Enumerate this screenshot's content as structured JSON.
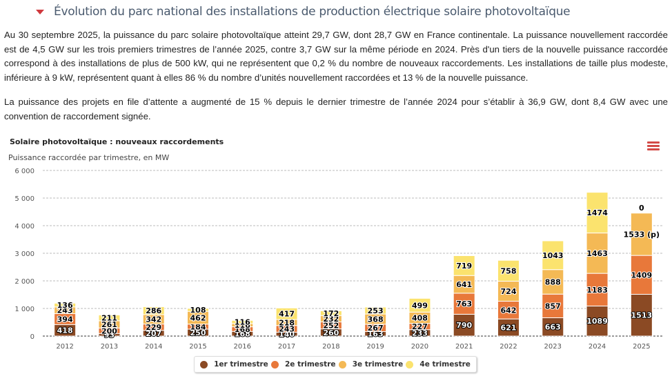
{
  "heading": {
    "title": "Évolution du parc national des installations de production électrique solaire photovoltaïque",
    "collapse_icon": "caret-down-icon"
  },
  "paragraphs": [
    "Au 30 septembre 2025, la puissance du parc solaire photovoltaïque atteint 29,7 GW, dont 28,7 GW en France continentale. La puissance nouvellement raccordée est de 4,5 GW sur les trois premiers trimestres de l’année 2025, contre 3,7 GW sur la même période en 2024. Près d'un tiers de la nouvelle puissance raccordée correspond à des installations de plus de 500 kW, qui ne représentent que 0,2 % du nombre de nouveaux raccordements. Les installations de taille plus modeste, inférieure à 9 kW, représentent quant à elles 86 % du nombre d’unités nouvellement raccordées et 13 % de la nouvelle puissance.",
    "La puissance des projets en file d’attente a augmenté de 15 % depuis le dernier trimestre de l’année 2024 pour s’établir à 36,9 GW, dont 8,4 GW avec une convention de raccordement signée."
  ],
  "chart_menu_icon": "hamburger-menu-icon",
  "chart_data": {
    "type": "bar",
    "stacked": true,
    "title": "Solaire photovoltaïque : nouveaux raccordements",
    "subtitle": "Puissance raccordée par trimestre, en MW",
    "xlabel": "",
    "ylabel": "",
    "ylim": [
      0,
      6000
    ],
    "yticks": [
      0,
      1000,
      2000,
      3000,
      4000,
      5000,
      6000
    ],
    "ytick_labels": [
      "0",
      "1 000",
      "2 000",
      "3 000",
      "4 000",
      "5 000",
      "6 000"
    ],
    "grid": true,
    "legend_position": "bottom-center",
    "categories": [
      "2012",
      "2013",
      "2014",
      "2015",
      "2016",
      "2017",
      "2018",
      "2019",
      "2020",
      "2021",
      "2022",
      "2023",
      "2024",
      "2025"
    ],
    "series": [
      {
        "name": "1er trimestre",
        "color": "#8b4a24",
        "values": [
          418,
          93,
          207,
          250,
          168,
          140,
          260,
          163,
          233,
          790,
          621,
          663,
          1089,
          1513
        ]
      },
      {
        "name": "2e trimestre",
        "color": "#e8783a",
        "values": [
          394,
          200,
          229,
          184,
          168,
          243,
          252,
          267,
          227,
          763,
          642,
          857,
          1183,
          1409
        ]
      },
      {
        "name": "3e trimestre",
        "color": "#f4b955",
        "values": [
          243,
          261,
          342,
          462,
          116,
          218,
          232,
          368,
          408,
          641,
          724,
          888,
          1463,
          1533
        ]
      },
      {
        "name": "4e trimestre",
        "color": "#fbe36e",
        "values": [
          136,
          211,
          286,
          108,
          116,
          417,
          172,
          253,
          499,
          719,
          758,
          1043,
          1474,
          0
        ]
      }
    ],
    "data_label_suffix": {
      "2025": {
        "3e trimestre": " (p)"
      }
    }
  }
}
